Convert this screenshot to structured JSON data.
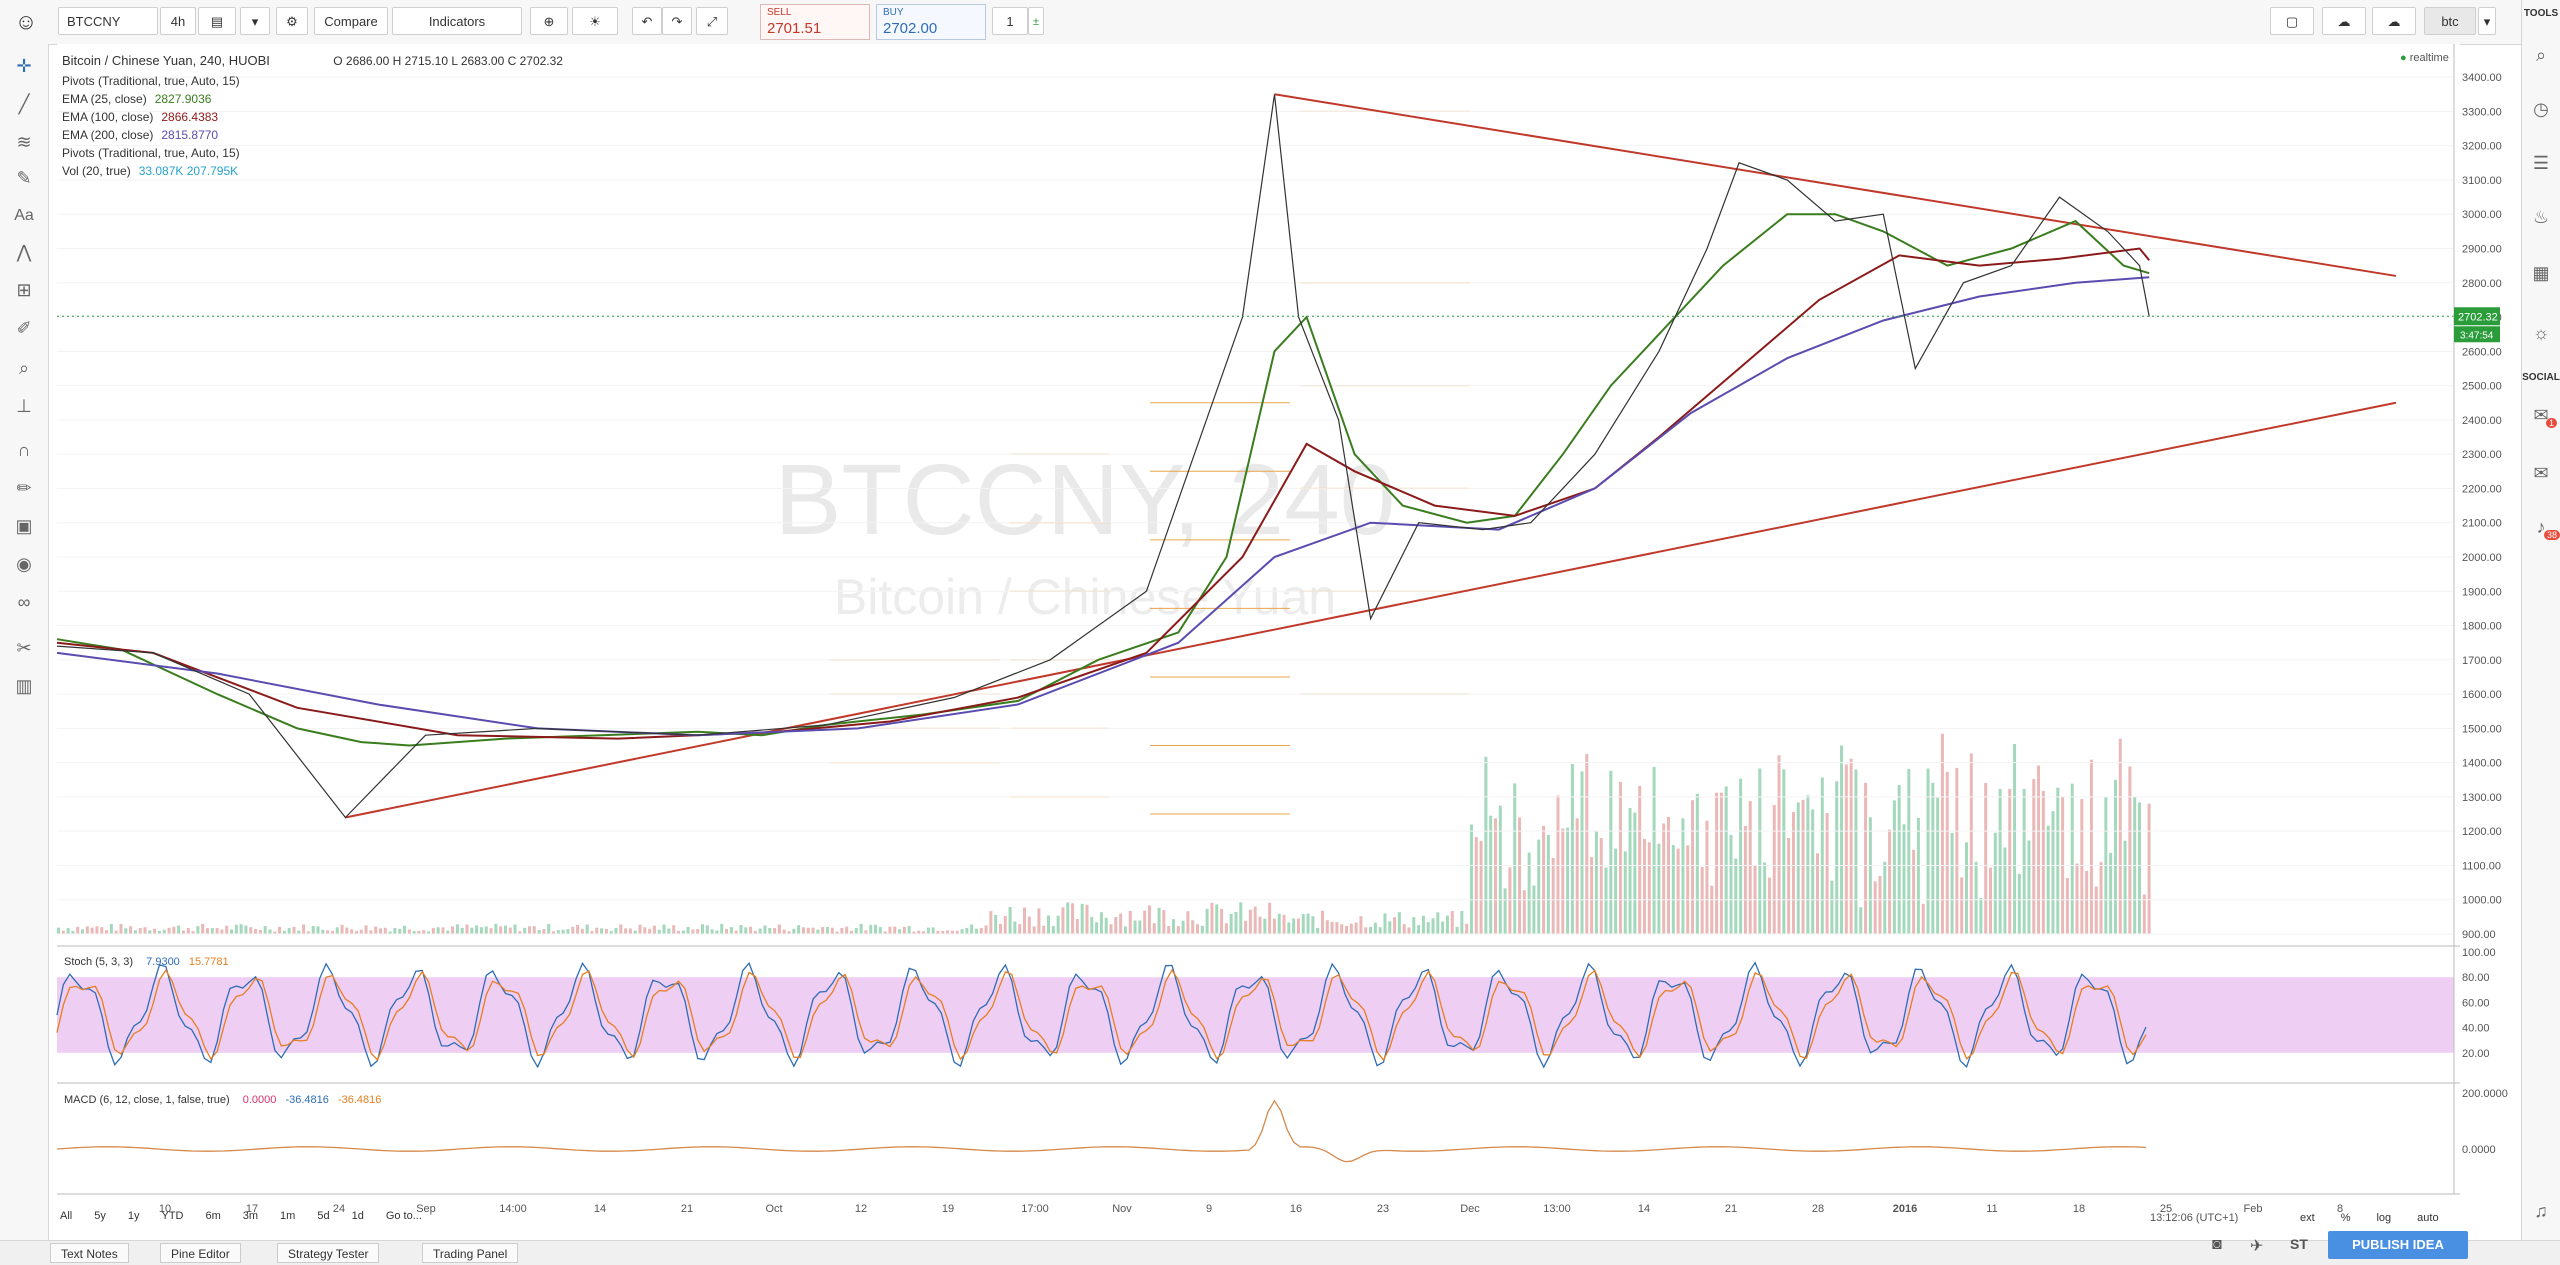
{
  "toolbar": {
    "symbol": "BTCCNY",
    "interval": "4h",
    "compare_label": "Compare",
    "indicators_label": "Indicators",
    "sell_label": "SELL",
    "sell_price": "2701.51",
    "buy_label": "BUY",
    "buy_price": "2702.00",
    "quantity": "1",
    "right_symbol": "btc"
  },
  "legend": {
    "title": "Bitcoin / Chinese Yuan, 240, HUOBI",
    "ohlc": "O 2686.00  H 2715.10  L 2683.00  C 2702.32",
    "rows": [
      {
        "label": "Pivots (Traditional, true, Auto, 15)",
        "value": "",
        "color": "#555555"
      },
      {
        "label": "EMA (25, close)",
        "value": "2827.9036",
        "color": "#3a7d1e"
      },
      {
        "label": "EMA (100, close)",
        "value": "2866.4383",
        "color": "#8b1a1a"
      },
      {
        "label": "EMA (200, close)",
        "value": "2815.8770",
        "color": "#5a4cb0"
      },
      {
        "label": "Pivots (Traditional, true, Auto, 15)",
        "value": "",
        "color": "#555555"
      },
      {
        "label": "Vol (20, true)",
        "value": "33.087K   207.795K",
        "color": "#26a3c9"
      }
    ],
    "realtime": "realtime"
  },
  "watermark": {
    "line1": "BTCCNY, 240",
    "line2": "Bitcoin / Chinese Yuan"
  },
  "chart_data": [
    {
      "type": "line",
      "title": "Bitcoin / Chinese Yuan, 240, HUOBI",
      "x_labels": [
        "10",
        "17",
        "24",
        "Sep",
        "14:00",
        "14",
        "21",
        "Oct",
        "12",
        "19",
        "17:00",
        "Nov",
        "9",
        "16",
        "23",
        "Dec",
        "13:00",
        "14",
        "21",
        "28",
        "2016",
        "11",
        "18",
        "25",
        "Feb",
        "8"
      ],
      "ylim": [
        900,
        3450
      ],
      "y_ticks": [
        900,
        1000,
        1100,
        1200,
        1300,
        1400,
        1500,
        1600,
        1700,
        1800,
        1900,
        2000,
        2100,
        2200,
        2300,
        2400,
        2500,
        2600,
        2700,
        2800,
        2900,
        3000,
        3100,
        3200,
        3300,
        3400
      ],
      "series": [
        {
          "name": "EMA (25, close)",
          "color": "#3a7d1e",
          "points": [
            [
              0,
              1760
            ],
            [
              40,
              1730
            ],
            [
              100,
              1600
            ],
            [
              150,
              1500
            ],
            [
              190,
              1460
            ],
            [
              220,
              1450
            ],
            [
              280,
              1470
            ],
            [
              340,
              1480
            ],
            [
              400,
              1490
            ],
            [
              440,
              1480
            ],
            [
              480,
              1510
            ],
            [
              540,
              1540
            ],
            [
              600,
              1580
            ],
            [
              650,
              1700
            ],
            [
              700,
              1780
            ],
            [
              730,
              2000
            ],
            [
              760,
              2600
            ],
            [
              780,
              2700
            ],
            [
              810,
              2300
            ],
            [
              840,
              2150
            ],
            [
              880,
              2100
            ],
            [
              910,
              2120
            ],
            [
              940,
              2300
            ],
            [
              970,
              2500
            ],
            [
              1000,
              2650
            ],
            [
              1040,
              2850
            ],
            [
              1080,
              3000
            ],
            [
              1110,
              3000
            ],
            [
              1140,
              2950
            ],
            [
              1180,
              2850
            ],
            [
              1220,
              2900
            ],
            [
              1260,
              2980
            ],
            [
              1290,
              2850
            ],
            [
              1306,
              2828
            ]
          ]
        },
        {
          "name": "EMA (100, close)",
          "color": "#8b1a1a",
          "points": [
            [
              0,
              1750
            ],
            [
              60,
              1720
            ],
            [
              150,
              1560
            ],
            [
              250,
              1480
            ],
            [
              350,
              1470
            ],
            [
              450,
              1490
            ],
            [
              520,
              1520
            ],
            [
              600,
              1590
            ],
            [
              680,
              1720
            ],
            [
              740,
              2000
            ],
            [
              780,
              2330
            ],
            [
              810,
              2250
            ],
            [
              860,
              2150
            ],
            [
              910,
              2120
            ],
            [
              960,
              2200
            ],
            [
              1000,
              2350
            ],
            [
              1050,
              2550
            ],
            [
              1100,
              2750
            ],
            [
              1150,
              2880
            ],
            [
              1200,
              2850
            ],
            [
              1250,
              2870
            ],
            [
              1300,
              2900
            ],
            [
              1306,
              2866
            ]
          ]
        },
        {
          "name": "EMA (200, close)",
          "color": "#5a4cb0",
          "points": [
            [
              0,
              1720
            ],
            [
              100,
              1660
            ],
            [
              200,
              1570
            ],
            [
              300,
              1500
            ],
            [
              400,
              1480
            ],
            [
              500,
              1500
            ],
            [
              600,
              1570
            ],
            [
              700,
              1750
            ],
            [
              760,
              2000
            ],
            [
              820,
              2100
            ],
            [
              900,
              2080
            ],
            [
              960,
              2200
            ],
            [
              1020,
              2420
            ],
            [
              1080,
              2580
            ],
            [
              1140,
              2690
            ],
            [
              1200,
              2760
            ],
            [
              1260,
              2800
            ],
            [
              1306,
              2816
            ]
          ]
        },
        {
          "name": "Price",
          "color": "#333333",
          "points": [
            [
              0,
              1740
            ],
            [
              60,
              1720
            ],
            [
              120,
              1600
            ],
            [
              180,
              1240
            ],
            [
              230,
              1480
            ],
            [
              300,
              1500
            ],
            [
              400,
              1480
            ],
            [
              480,
              1510
            ],
            [
              560,
              1590
            ],
            [
              620,
              1700
            ],
            [
              680,
              1900
            ],
            [
              710,
              2300
            ],
            [
              740,
              2700
            ],
            [
              760,
              3350
            ],
            [
              775,
              2700
            ],
            [
              800,
              2400
            ],
            [
              820,
              1820
            ],
            [
              850,
              2100
            ],
            [
              890,
              2080
            ],
            [
              920,
              2100
            ],
            [
              960,
              2300
            ],
            [
              1000,
              2600
            ],
            [
              1030,
              2900
            ],
            [
              1050,
              3150
            ],
            [
              1080,
              3100
            ],
            [
              1110,
              2980
            ],
            [
              1140,
              3000
            ],
            [
              1160,
              2550
            ],
            [
              1190,
              2800
            ],
            [
              1220,
              2850
            ],
            [
              1250,
              3050
            ],
            [
              1280,
              2950
            ],
            [
              1300,
              2850
            ],
            [
              1306,
              2702
            ]
          ]
        }
      ],
      "trendlines": [
        {
          "name": "upper",
          "from": [
            760,
            3350
          ],
          "to": [
            1460,
            2820
          ]
        },
        {
          "name": "lower",
          "from": [
            180,
            1240
          ],
          "to": [
            1460,
            2450
          ]
        }
      ],
      "last_price": "2702.32",
      "countdown": "3:47:54"
    },
    {
      "type": "line",
      "title": "Stoch (5, 3, 3)",
      "values_text": [
        "7.9300",
        "15.7781"
      ],
      "ylim": [
        0,
        100
      ],
      "y_ticks": [
        20,
        40,
        60,
        80,
        100
      ],
      "band": [
        20,
        80
      ]
    },
    {
      "type": "line",
      "title": "MACD (6, 12, close, 1, false, true)",
      "values_text": [
        "0.0000",
        "-36.4816",
        "-36.4816"
      ],
      "y_ticks": [
        0,
        200
      ]
    }
  ],
  "time_ranges": [
    "All",
    "5y",
    "1y",
    "YTD",
    "6m",
    "3m",
    "1m",
    "5d",
    "1d",
    "Go to..."
  ],
  "clock": "13:12:06 (UTC+1)",
  "scale_options": [
    "ext",
    "%",
    "log",
    "auto"
  ],
  "bottom_tabs": [
    "Text Notes",
    "Pine Editor",
    "Strategy Tester",
    "Trading Panel"
  ],
  "right_bottom": {
    "st": "ST",
    "publish": "PUBLISH IDEA"
  },
  "right_panel": {
    "tools": "TOOLS",
    "social": "SOCIAL",
    "badge1": "1",
    "badge2": "38"
  }
}
